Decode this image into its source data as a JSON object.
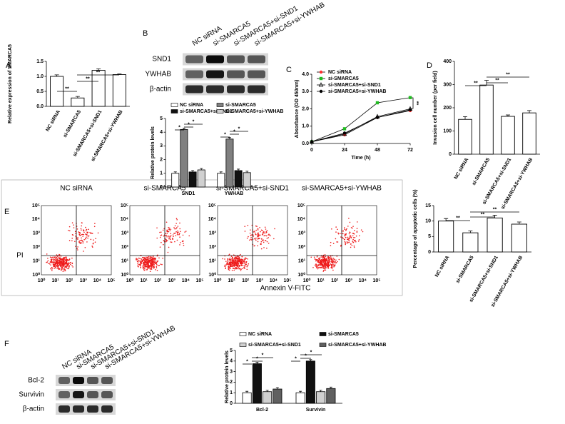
{
  "panel_labels": [
    "A",
    "B",
    "C",
    "D",
    "E",
    "F"
  ],
  "blots": [
    {
      "lanes": [
        "NC siRNA",
        "si-SMARCA5",
        "si-SMARCA5+si-SND1",
        "si-SMARCA5+si-YWHAB"
      ],
      "rows": [
        "SND1",
        "YWHAB",
        "β-actin"
      ]
    },
    {
      "lanes": [
        "NC siRNA",
        "si-SMARCA5",
        "si-SMARCA5+si-SND1",
        "si-SMARCA5+si-YWHAB"
      ],
      "rows": [
        "Bcl-2",
        "Survivin",
        "β-actin"
      ]
    }
  ],
  "flow": {
    "titles": [
      "NC siRNA",
      "si-SMARCA5",
      "si-SMARCA5+si-SND1",
      "si-SMARCA5+si-YWHAB"
    ],
    "ticks": [
      "10⁰",
      "10¹",
      "10²",
      "10³",
      "10⁴",
      "10⁵"
    ],
    "xlabel": "Annexin V-FITC",
    "ylabel": "PI"
  },
  "chart_data": [
    {
      "type": "bar",
      "ylabel": "Relative expression of SMARCA5",
      "color": "#ffffff",
      "categories": [
        "NC siRNA",
        "si-SMARCA5",
        "si-SMARCA5+si-SND1",
        "si-SMARCA5+si-YWHAB"
      ],
      "values": [
        1.0,
        0.28,
        1.2,
        1.06
      ],
      "errors": [
        0.05,
        0.05,
        0.05,
        0.02
      ],
      "ylim": [
        0,
        1.5
      ],
      "yticks": [
        {
          "value": 0,
          "label": "0.0"
        },
        {
          "value": 0.5,
          "label": "0.5"
        },
        {
          "value": 1,
          "label": "1.0"
        },
        {
          "value": 1.5,
          "label": "1.5"
        }
      ],
      "annotations": [
        "**",
        "**",
        "**"
      ]
    },
    {
      "type": "grouped_bar",
      "ylabel": "Relative protein levels",
      "categories": [
        "SND1",
        "YWHAB"
      ],
      "series": [
        {
          "name": "NC siRNA",
          "color": "#ffffff",
          "values": [
            1.0,
            1.0
          ]
        },
        {
          "name": "si-SMARCA5",
          "color": "#808080",
          "values": [
            4.2,
            3.5
          ]
        },
        {
          "name": "si-SMARCA5+si-SND1",
          "color": "#111111",
          "values": [
            1.1,
            1.2
          ]
        },
        {
          "name": "si-SMARCA5+si-YWHAB",
          "color": "#d0d0d0",
          "values": [
            1.25,
            1.05
          ]
        }
      ],
      "ylim": [
        0,
        5
      ],
      "yticks": [
        0,
        1,
        2,
        3,
        4,
        5
      ],
      "annotations": [
        "*",
        "*",
        "*",
        "*",
        "*",
        "*"
      ]
    },
    {
      "type": "line",
      "ylabel": "Absorbance (OD 450nm)",
      "xlabel": "Time (h)",
      "x": [
        0,
        24,
        48,
        72
      ],
      "series": [
        {
          "name": "NC siRNA",
          "color": "#ff3030",
          "values": [
            0.1,
            0.5,
            1.5,
            1.9
          ]
        },
        {
          "name": "si-SMARCA5",
          "color": "#22bb22",
          "values": [
            0.1,
            0.85,
            2.35,
            2.65
          ]
        },
        {
          "name": "si-SMARCA5+si-SND1",
          "color": "#2222dd",
          "values": [
            0.1,
            0.55,
            1.55,
            2.0
          ]
        },
        {
          "name": "si-SMARCA5+si-YWHAB",
          "color": "#000000",
          "values": [
            0.1,
            0.6,
            1.5,
            1.95
          ]
        }
      ],
      "xlim": [
        0,
        72
      ],
      "xticks": [
        0,
        24,
        48,
        72
      ],
      "ylim": [
        0,
        4
      ],
      "yticks": [
        {
          "value": 0,
          "label": "0.0"
        },
        {
          "value": 1,
          "label": "1.0"
        },
        {
          "value": 2,
          "label": "2.0"
        },
        {
          "value": 3,
          "label": "3.0"
        },
        {
          "value": 4,
          "label": "4.0"
        }
      ],
      "annotations": [
        "**"
      ]
    },
    {
      "type": "bar",
      "ylabel": "Invasion cell number (per field)",
      "color": "#ffffff",
      "categories": [
        "NC siRNA",
        "si-SMARCA5",
        "si-SMARCA5+si-SND1",
        "si-SMARCA5+si-YWHAB"
      ],
      "values": [
        150,
        298,
        163,
        178
      ],
      "errors": [
        12,
        20,
        6,
        10
      ],
      "ylim": [
        0,
        400
      ],
      "yticks": [
        0,
        100,
        200,
        300,
        400
      ],
      "annotations": [
        "**",
        "**",
        "**"
      ]
    },
    {
      "type": "bar",
      "ylabel": "Percentage of apoptotic cells (%)",
      "color": "#ffffff",
      "categories": [
        "NC siRNA",
        "si-SMARCA5",
        "si-SMARCA5+si-SND1",
        "si-SMARCA5+si-YWHAB"
      ],
      "values": [
        10,
        6.2,
        11,
        9
      ],
      "errors": [
        0.8,
        0.6,
        0.9,
        0.7
      ],
      "ylim": [
        0,
        15
      ],
      "yticks": [
        0,
        5,
        10,
        15
      ],
      "annotations": [
        "**",
        "**",
        "**"
      ]
    },
    {
      "type": "grouped_bar",
      "ylabel": "Relative protein levels",
      "categories": [
        "Bcl-2",
        "Survivin"
      ],
      "series": [
        {
          "name": "NC siRNA",
          "color": "#ffffff",
          "values": [
            1.0,
            1.0
          ]
        },
        {
          "name": "si-SMARCA5",
          "color": "#111111",
          "values": [
            3.75,
            4.0
          ]
        },
        {
          "name": "si-SMARCA5+si-SND1",
          "color": "#d0d0d0",
          "values": [
            1.1,
            1.1
          ]
        },
        {
          "name": "si-SMARCA5+si-YWHAB",
          "color": "#606060",
          "values": [
            1.35,
            1.4
          ]
        }
      ],
      "ylim": [
        0,
        5
      ],
      "yticks": [
        0,
        1,
        2,
        3,
        4,
        5
      ],
      "annotations": [
        "*",
        "*",
        "*",
        "*",
        "*",
        "*"
      ]
    }
  ]
}
